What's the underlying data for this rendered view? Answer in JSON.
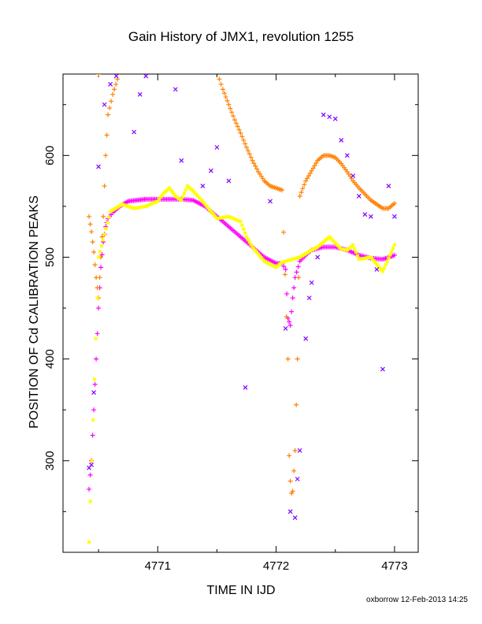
{
  "chart_data": {
    "type": "scatter",
    "title": "Gain History of JMX1, revolution 1255",
    "xlabel": "TIME IN IJD",
    "ylabel": "POSITION OF Cd CALIBRATION PEAKS",
    "xlim": [
      4770.2,
      4773.2
    ],
    "ylim": [
      210,
      680
    ],
    "xticks": [
      4771,
      4772,
      4773
    ],
    "yticks": [
      300,
      400,
      500,
      600
    ],
    "x_tick_labels": [
      "4771",
      "4772",
      "4773"
    ],
    "y_tick_labels": [
      "300",
      "400",
      "500",
      "600"
    ],
    "grid": false,
    "series": [
      {
        "color": "#ff00ff",
        "marker": "plus",
        "x": [
          4770.42,
          4770.44,
          4770.46,
          4770.48,
          4770.5,
          4770.52,
          4770.54,
          4770.56,
          4770.58,
          4770.62,
          4770.68,
          4770.75,
          4770.82,
          4770.9,
          4771.0,
          4771.1,
          4771.2,
          4771.3,
          4771.4,
          4771.5,
          4771.6,
          4771.7,
          4771.8,
          4771.9,
          4772.0,
          4772.05,
          4772.08,
          4772.1,
          4772.12,
          4772.14,
          4772.16,
          4772.2,
          4772.25,
          4772.3,
          4772.4,
          4772.5,
          4772.6,
          4772.7,
          4772.8,
          4772.9,
          4772.96,
          4773.0
        ],
        "y": [
          272,
          300,
          350,
          400,
          450,
          490,
          515,
          530,
          538,
          544,
          550,
          555,
          556,
          557,
          557,
          557,
          557,
          556,
          550,
          540,
          530,
          520,
          510,
          500,
          494,
          494,
          488,
          440,
          433,
          460,
          480,
          496,
          502,
          507,
          510,
          510,
          507,
          502,
          499,
          498,
          500,
          502
        ]
      },
      {
        "color": "#ff8000",
        "marker": "plus",
        "x": [
          4770.42,
          4770.44,
          4770.46,
          4770.48,
          4770.5,
          4770.52,
          4770.54,
          4770.56,
          4770.58,
          4770.62,
          4770.66,
          4770.5,
          4771.52,
          4771.55,
          4771.6,
          4771.65,
          4771.7,
          4771.75,
          4771.8,
          4771.85,
          4771.9,
          4771.95,
          4772.0,
          4772.05,
          4772.1,
          4772.11,
          4772.12,
          4772.13,
          4772.14,
          4772.16,
          4772.18,
          4772.2,
          4772.25,
          4772.3,
          4772.35,
          4772.4,
          4772.45,
          4772.5,
          4772.55,
          4772.6,
          4772.65,
          4772.7,
          4772.75,
          4772.8,
          4772.85,
          4772.9,
          4772.95,
          4773.0
        ],
        "y": [
          540,
          525,
          505,
          480,
          460,
          500,
          540,
          600,
          640,
          660,
          675,
          680,
          675,
          665,
          650,
          635,
          622,
          608,
          595,
          584,
          575,
          570,
          568,
          566,
          400,
          305,
          280,
          268,
          270,
          310,
          400,
          560,
          575,
          585,
          595,
          600,
          600,
          598,
          592,
          584,
          575,
          568,
          562,
          556,
          552,
          548,
          548,
          553
        ]
      },
      {
        "color": "#ffff00",
        "marker": "square",
        "x": [
          4770.42,
          4770.5,
          4770.6,
          4770.7,
          4770.8,
          4770.9,
          4771.0,
          4771.05,
          4771.1,
          4771.15,
          4771.2,
          4771.25,
          4771.3,
          4771.4,
          4771.5,
          4771.6,
          4771.7,
          4771.75,
          4771.8,
          4771.85,
          4771.9,
          4772.0,
          4772.05,
          4772.2,
          4772.3,
          4772.35,
          4772.4,
          4772.45,
          4772.5,
          4772.55,
          4772.6,
          4772.65,
          4772.7,
          4772.8,
          4772.9,
          4773.0
        ],
        "y": [
          220,
          500,
          545,
          552,
          548,
          550,
          555,
          563,
          568,
          560,
          556,
          570,
          565,
          552,
          538,
          540,
          535,
          520,
          510,
          503,
          496,
          490,
          495,
          500,
          507,
          510,
          515,
          520,
          514,
          508,
          507,
          512,
          498,
          500,
          486,
          512
        ]
      },
      {
        "color": "#8000ff",
        "marker": "cross",
        "x": [
          4770.42,
          4770.44,
          4770.46,
          4770.5,
          4770.55,
          4770.6,
          4770.65,
          4770.8,
          4770.85,
          4770.9,
          4771.15,
          4771.2,
          4771.38,
          4771.45,
          4771.5,
          4771.6,
          4771.74,
          4771.95,
          4772.08,
          4772.12,
          4772.16,
          4772.18,
          4772.2,
          4772.25,
          4772.28,
          4772.3,
          4772.35,
          4772.4,
          4772.45,
          4772.5,
          4772.55,
          4772.6,
          4772.65,
          4772.7,
          4772.75,
          4772.8,
          4772.85,
          4772.9,
          4772.95,
          4773.0
        ],
        "y": [
          293,
          296,
          367,
          589,
          650,
          670,
          678,
          623,
          660,
          678,
          665,
          595,
          570,
          585,
          608,
          575,
          372,
          555,
          430,
          250,
          244,
          282,
          310,
          420,
          460,
          475,
          500,
          640,
          638,
          636,
          615,
          600,
          580,
          560,
          542,
          540,
          488,
          390,
          570,
          540
        ]
      }
    ]
  },
  "footer": "oxborrow 12-Feb-2013 14:25"
}
